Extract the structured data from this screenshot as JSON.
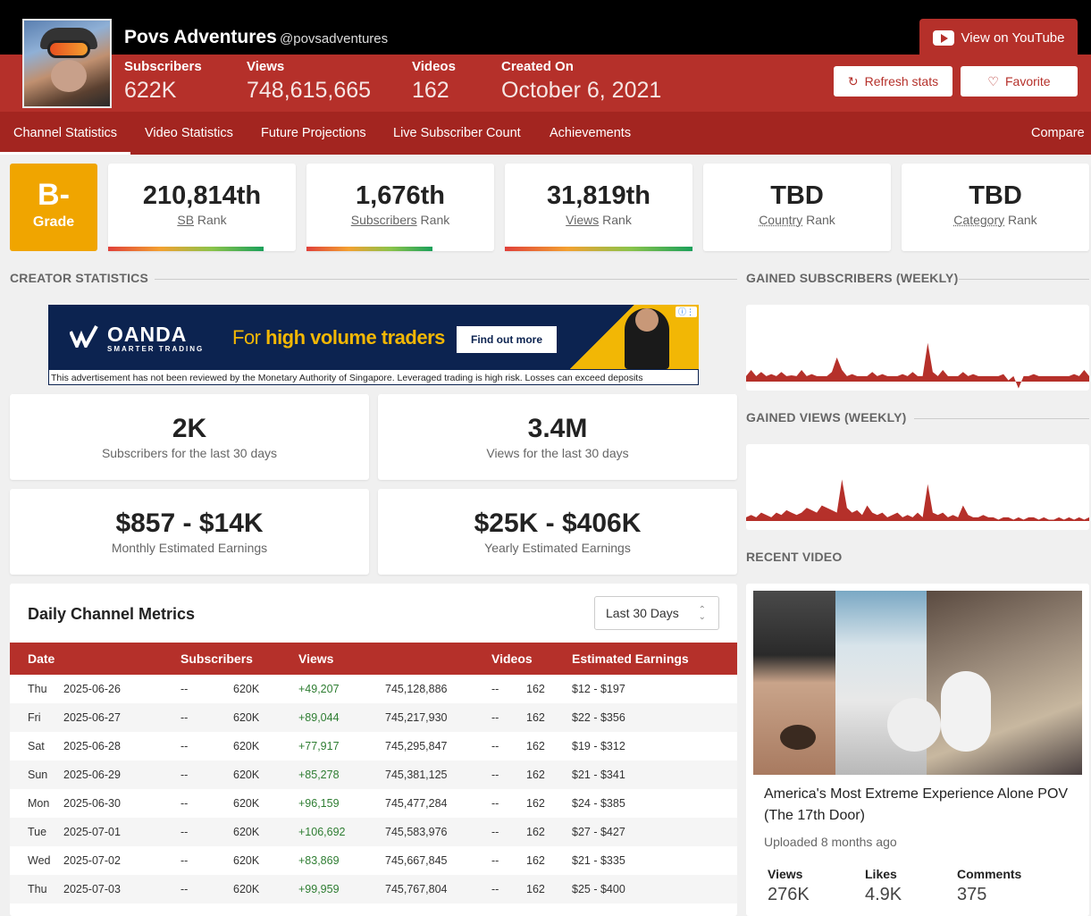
{
  "channel": {
    "name": "Povs Adventures",
    "handle": "@povsadventures",
    "stats": [
      {
        "label": "Subscribers",
        "value": "622K"
      },
      {
        "label": "Views",
        "value": "748,615,665"
      },
      {
        "label": "Videos",
        "value": "162"
      },
      {
        "label": "Created On",
        "value": "October 6, 2021"
      }
    ]
  },
  "actions": {
    "youtube": "View on YouTube",
    "refresh": "Refresh stats",
    "favorite": "Favorite"
  },
  "nav": {
    "tabs": [
      "Channel Statistics",
      "Video Statistics",
      "Future Projections",
      "Live Subscriber Count",
      "Achievements"
    ],
    "active": 0,
    "compare": "Compare"
  },
  "grade": {
    "value": "B-",
    "label": "Grade"
  },
  "ranks": [
    {
      "value": "210,814th",
      "term": "SB",
      "suffix": " Rank",
      "progress": 0.83
    },
    {
      "value": "1,676th",
      "term": "Subscribers",
      "suffix": " Rank",
      "progress": 0.67
    },
    {
      "value": "31,819th",
      "term": "Views",
      "suffix": " Rank",
      "progress": 1.0
    },
    {
      "value": "TBD",
      "term": "Country",
      "suffix": " Rank",
      "progress": 0
    },
    {
      "value": "TBD",
      "term": "Category",
      "suffix": " Rank",
      "progress": 0
    }
  ],
  "sections": {
    "creator": "CREATOR STATISTICS",
    "gained_subs": "GAINED SUBSCRIBERS (WEEKLY)",
    "gained_views": "GAINED VIEWS (WEEKLY)",
    "recent": "RECENT VIDEO"
  },
  "ad": {
    "brand": "OANDA",
    "brand_sub": "SMARTER TRADING",
    "tagline_a": "For ",
    "tagline_b": "high volume traders",
    "cta": "Find out more",
    "disclaimer": "This advertisement has not been reviewed by the Monetary Authority of Singapore. Leveraged trading is high risk. Losses can exceed deposits"
  },
  "summary": [
    {
      "value": "2K",
      "label": "Subscribers for the last 30 days"
    },
    {
      "value": "3.4M",
      "label": "Views for the last 30 days"
    },
    {
      "value": "$857 - $14K",
      "label": "Monthly Estimated Earnings"
    },
    {
      "value": "$25K - $406K",
      "label": "Yearly Estimated Earnings"
    }
  ],
  "metrics": {
    "title": "Daily Channel Metrics",
    "range": "Last 30 Days",
    "columns": [
      "Date",
      "Subscribers",
      "Views",
      "Videos",
      "Estimated Earnings"
    ],
    "rows": [
      {
        "day": "Thu",
        "date": "2025-06-26",
        "sub_change": "--",
        "subs": "620K",
        "view_change": "+49,207",
        "views": "745,128,886",
        "vid_change": "--",
        "videos": "162",
        "earnings": "$12 - $197"
      },
      {
        "day": "Fri",
        "date": "2025-06-27",
        "sub_change": "--",
        "subs": "620K",
        "view_change": "+89,044",
        "views": "745,217,930",
        "vid_change": "--",
        "videos": "162",
        "earnings": "$22 - $356"
      },
      {
        "day": "Sat",
        "date": "2025-06-28",
        "sub_change": "--",
        "subs": "620K",
        "view_change": "+77,917",
        "views": "745,295,847",
        "vid_change": "--",
        "videos": "162",
        "earnings": "$19 - $312"
      },
      {
        "day": "Sun",
        "date": "2025-06-29",
        "sub_change": "--",
        "subs": "620K",
        "view_change": "+85,278",
        "views": "745,381,125",
        "vid_change": "--",
        "videos": "162",
        "earnings": "$21 - $341"
      },
      {
        "day": "Mon",
        "date": "2025-06-30",
        "sub_change": "--",
        "subs": "620K",
        "view_change": "+96,159",
        "views": "745,477,284",
        "vid_change": "--",
        "videos": "162",
        "earnings": "$24 - $385"
      },
      {
        "day": "Tue",
        "date": "2025-07-01",
        "sub_change": "--",
        "subs": "620K",
        "view_change": "+106,692",
        "views": "745,583,976",
        "vid_change": "--",
        "videos": "162",
        "earnings": "$27 - $427"
      },
      {
        "day": "Wed",
        "date": "2025-07-02",
        "sub_change": "--",
        "subs": "620K",
        "view_change": "+83,869",
        "views": "745,667,845",
        "vid_change": "--",
        "videos": "162",
        "earnings": "$21 - $335"
      },
      {
        "day": "Thu",
        "date": "2025-07-03",
        "sub_change": "--",
        "subs": "620K",
        "view_change": "+99,959",
        "views": "745,767,804",
        "vid_change": "--",
        "videos": "162",
        "earnings": "$25 - $400"
      }
    ]
  },
  "sparks": {
    "subs": [
      0.2,
      0.35,
      0.2,
      0.3,
      0.2,
      0.25,
      0.2,
      0.3,
      0.2,
      0.22,
      0.2,
      0.35,
      0.2,
      0.25,
      0.2,
      0.2,
      0.2,
      0.3,
      0.65,
      0.35,
      0.2,
      0.25,
      0.2,
      0.2,
      0.2,
      0.3,
      0.2,
      0.25,
      0.2,
      0.2,
      0.2,
      0.25,
      0.2,
      0.3,
      0.2,
      0.2,
      1.0,
      0.3,
      0.2,
      0.35,
      0.2,
      0.2,
      0.2,
      0.3,
      0.2,
      0.25,
      0.2,
      0.2,
      0.2,
      0.2,
      0.2,
      0.25,
      0.1,
      0.2,
      -0.1,
      0.2,
      0.2,
      0.25,
      0.2,
      0.2,
      0.2,
      0.2,
      0.2,
      0.2,
      0.2,
      0.25,
      0.2,
      0.35,
      0.2
    ],
    "views": [
      0.2,
      0.25,
      0.2,
      0.3,
      0.25,
      0.2,
      0.3,
      0.25,
      0.35,
      0.3,
      0.25,
      0.3,
      0.4,
      0.35,
      0.3,
      0.45,
      0.4,
      0.35,
      0.3,
      1.0,
      0.4,
      0.3,
      0.35,
      0.25,
      0.45,
      0.3,
      0.25,
      0.3,
      0.2,
      0.25,
      0.3,
      0.2,
      0.25,
      0.2,
      0.3,
      0.2,
      0.9,
      0.3,
      0.25,
      0.3,
      0.2,
      0.25,
      0.2,
      0.45,
      0.25,
      0.2,
      0.2,
      0.25,
      0.2,
      0.2,
      0.15,
      0.2,
      0.2,
      0.15,
      0.2,
      0.15,
      0.2,
      0.2,
      0.15,
      0.2,
      0.15,
      0.15,
      0.2,
      0.15,
      0.2,
      0.15,
      0.2,
      0.15,
      0.2
    ]
  },
  "recent": {
    "title": "America's Most Extreme Experience Alone POV (The 17th Door)",
    "uploaded": "Uploaded 8 months ago",
    "stats": [
      {
        "label": "Views",
        "value": "276K"
      },
      {
        "label": "Likes",
        "value": "4.9K"
      },
      {
        "label": "Comments",
        "value": "375"
      }
    ]
  }
}
